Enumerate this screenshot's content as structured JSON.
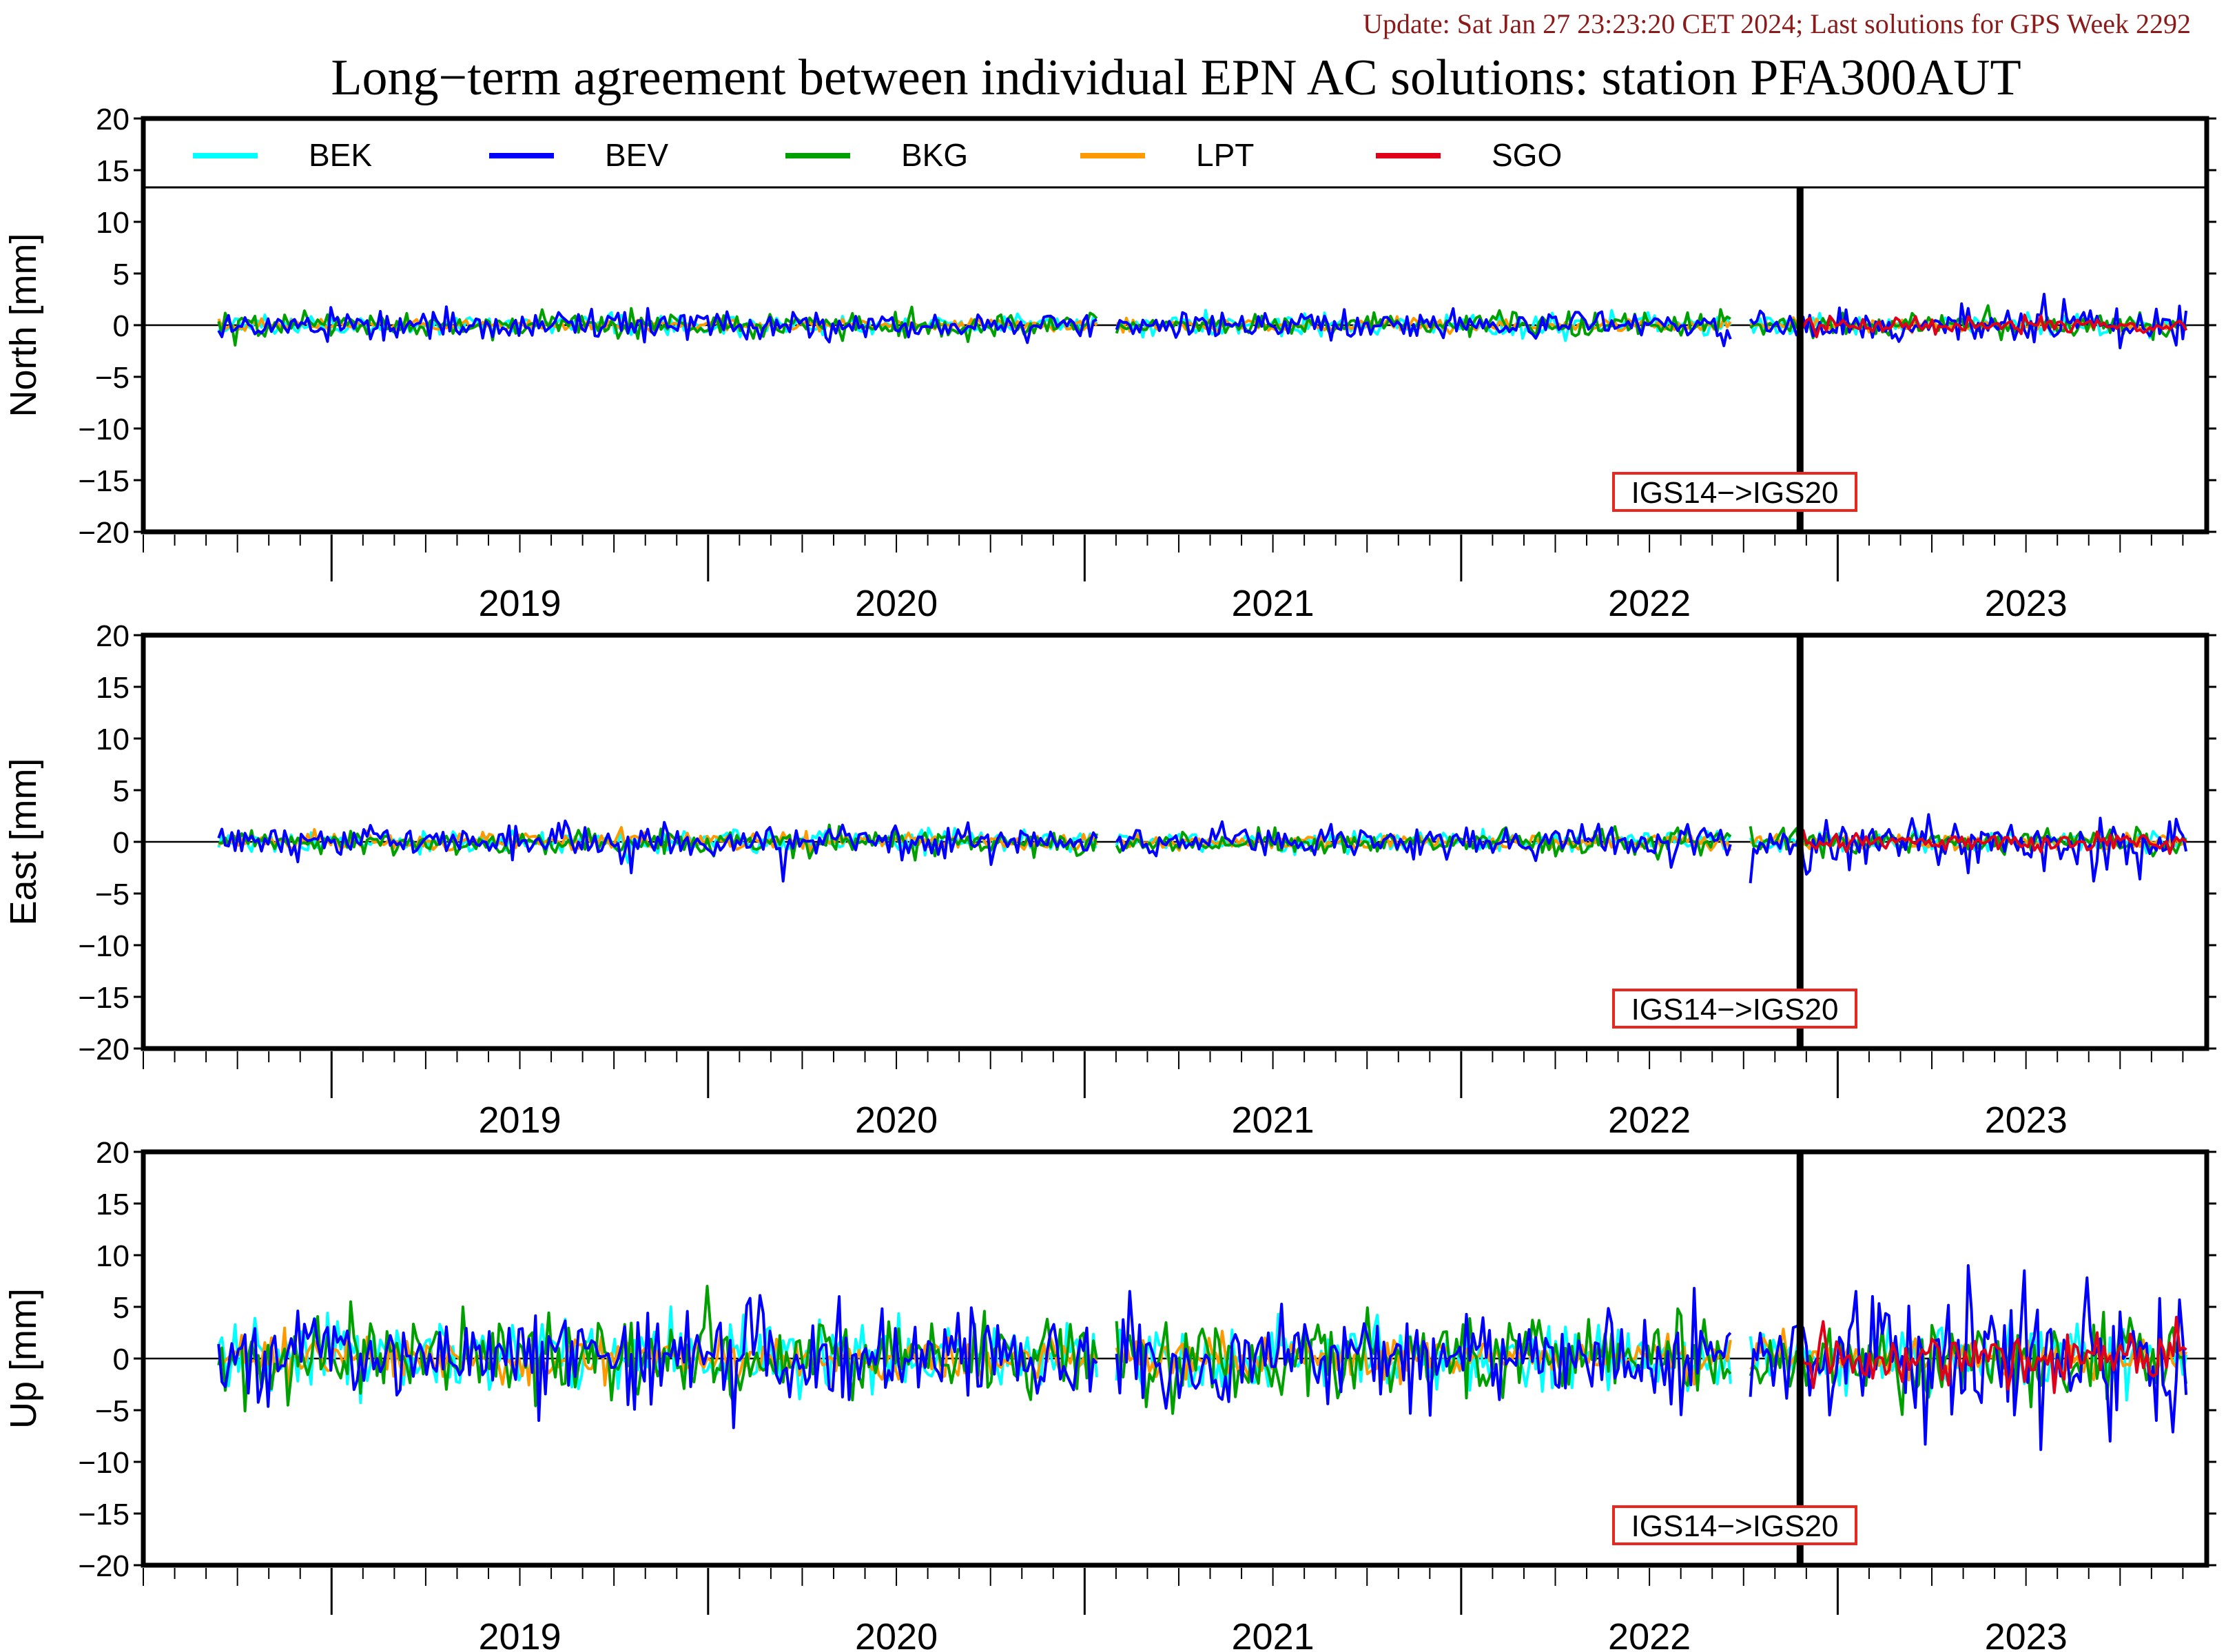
{
  "update_text": "Update: Sat Jan 27 23:23:20 CET 2024; Last solutions for GPS Week 2292",
  "title": "Long−term agreement between individual EPN AC solutions: station PFA300AUT",
  "colors": {
    "update_text": "#8b1a1a",
    "axis": "#000000",
    "marker_box": "#e8281e",
    "BEK": "#00ffff",
    "BEV": "#0000ff",
    "BKG": "#00a000",
    "LPT": "#ff9900",
    "SGO": "#e0001a"
  },
  "legend": [
    "BEK",
    "BEV",
    "BKG",
    "LPT",
    "SGO"
  ],
  "marker_label": "IGS14−>IGS20",
  "chart_data": [
    {
      "type": "line",
      "ylabel": "North [mm]",
      "ylim": [
        -20,
        20
      ],
      "yticks": [
        "20",
        "15",
        "10",
        "5",
        "0",
        "−5",
        "−10",
        "−15",
        "−20"
      ],
      "xlim": [
        2018.5,
        2023.98
      ],
      "year_labels": [
        "2019",
        "2020",
        "2021",
        "2022",
        "2023"
      ],
      "reference_change": {
        "x": 2022.9,
        "label": "IGS14−>IGS20"
      },
      "data_span": [
        2018.7,
        2023.93
      ],
      "gaps": [
        [
          2021.04,
          2021.08
        ],
        [
          2022.72,
          2022.76
        ]
      ],
      "series": [
        {
          "name": "BEK",
          "typical_abs_mm": 0.5,
          "peak_points": []
        },
        {
          "name": "BEV",
          "typical_abs_mm": 0.7,
          "peak_points": [
            [
              2023.55,
              3.0
            ],
            [
              2023.6,
              2.5
            ],
            [
              2023.75,
              -2.2
            ],
            [
              2022.7,
              -2.0
            ],
            [
              2023.95,
              2.1
            ]
          ]
        },
        {
          "name": "BKG",
          "typical_abs_mm": 0.6,
          "peak_points": [
            [
              2019.56,
              1.5
            ],
            [
              2023.4,
              1.9
            ],
            [
              2023.85,
              1.4
            ]
          ]
        },
        {
          "name": "LPT",
          "typical_abs_mm": 0.3,
          "peak_points": []
        },
        {
          "name": "SGO",
          "typical_abs_mm": 0.4,
          "start": 2022.9,
          "peak_points": []
        }
      ]
    },
    {
      "type": "line",
      "ylabel": "East [mm]",
      "ylim": [
        -20,
        20
      ],
      "yticks": [
        "20",
        "15",
        "10",
        "5",
        "0",
        "−5",
        "−10",
        "−15",
        "−20"
      ],
      "xlim": [
        2018.5,
        2023.98
      ],
      "year_labels": [
        "2019",
        "2020",
        "2021",
        "2022",
        "2023"
      ],
      "reference_change": {
        "x": 2022.9,
        "label": "IGS14−>IGS20"
      },
      "data_span": [
        2018.7,
        2023.93
      ],
      "gaps": [
        [
          2021.04,
          2021.08
        ],
        [
          2022.72,
          2022.76
        ]
      ],
      "series": [
        {
          "name": "BEK",
          "typical_abs_mm": 0.5,
          "peak_points": [
            [
              2019.79,
              -2.0
            ],
            [
              2022.72,
              1.3
            ]
          ]
        },
        {
          "name": "BEV",
          "typical_abs_mm": 0.8,
          "peak_points": [
            [
              2019.6,
              1.8
            ],
            [
              2019.8,
              -3.0
            ],
            [
              2020.2,
              -3.8
            ],
            [
              2020.75,
              -2.2
            ],
            [
              2022.77,
              -4.0
            ],
            [
              2023.35,
              -3.0
            ],
            [
              2023.55,
              -2.8
            ],
            [
              2023.68,
              -3.8
            ],
            [
              2023.8,
              -3.6
            ],
            [
              2023.7,
              2.3
            ],
            [
              2023.9,
              2.2
            ]
          ]
        },
        {
          "name": "BKG",
          "typical_abs_mm": 0.6,
          "peak_points": []
        },
        {
          "name": "LPT",
          "typical_abs_mm": 0.4,
          "peak_points": [
            [
              2018.95,
              1.2
            ],
            [
              2019.77,
              1.4
            ]
          ]
        },
        {
          "name": "SGO",
          "typical_abs_mm": 0.4,
          "start": 2022.9,
          "peak_points": []
        }
      ]
    },
    {
      "type": "line",
      "ylabel": "Up [mm]",
      "ylim": [
        -20,
        20
      ],
      "yticks": [
        "20",
        "15",
        "10",
        "5",
        "0",
        "−5",
        "−10",
        "−15",
        "−20"
      ],
      "xlim": [
        2018.5,
        2023.98
      ],
      "year_labels": [
        "2019",
        "2020",
        "2021",
        "2022",
        "2023"
      ],
      "reference_change": {
        "x": 2022.9,
        "label": "IGS14−>IGS20"
      },
      "data_span": [
        2018.7,
        2023.93
      ],
      "gaps": [
        [
          2021.04,
          2021.08
        ],
        [
          2022.72,
          2022.76
        ]
      ],
      "series": [
        {
          "name": "BEK",
          "typical_abs_mm": 1.6,
          "peak_points": [
            [
              2019.9,
              5.0
            ]
          ]
        },
        {
          "name": "BEV",
          "typical_abs_mm": 2.2,
          "peak_points": [
            [
              2019.55,
              6.0
            ],
            [
              2019.55,
              -6.0
            ],
            [
              2020.07,
              -6.7
            ],
            [
              2020.35,
              6.0
            ],
            [
              2021.12,
              6.5
            ],
            [
              2021.92,
              -5.5
            ],
            [
              2022.62,
              6.8
            ],
            [
              2023.05,
              6.5
            ],
            [
              2023.23,
              -8.3
            ],
            [
              2023.35,
              9.0
            ],
            [
              2023.5,
              8.5
            ],
            [
              2023.72,
              -8.0
            ],
            [
              2023.85,
              -6.0
            ]
          ]
        },
        {
          "name": "BKG",
          "typical_abs_mm": 1.9,
          "peak_points": [
            [
              2019.05,
              5.5
            ],
            [
              2019.35,
              5.0
            ],
            [
              2020.0,
              7.0
            ],
            [
              2022.72,
              -4.7
            ]
          ]
        },
        {
          "name": "LPT",
          "typical_abs_mm": 1.0,
          "peak_points": [
            [
              2021.52,
              4.0
            ]
          ]
        },
        {
          "name": "SGO",
          "typical_abs_mm": 1.2,
          "start": 2022.9,
          "peak_points": [
            [
              2023.9,
              4.0
            ]
          ]
        }
      ]
    }
  ]
}
